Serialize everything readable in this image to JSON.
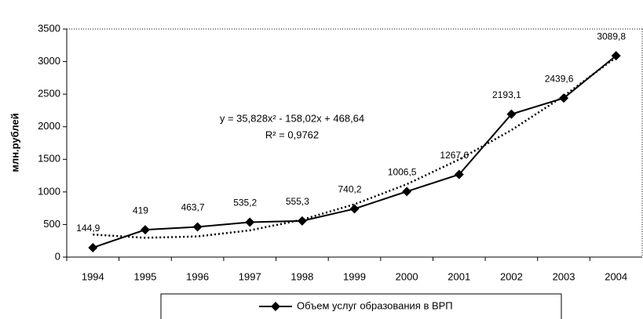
{
  "chart_data": {
    "type": "line",
    "y_label": "млн.рублей",
    "categories": [
      "1994",
      "1995",
      "1996",
      "1997",
      "1998",
      "1999",
      "2000",
      "2001",
      "2002",
      "2003",
      "2004"
    ],
    "series": [
      {
        "name": "Объем услуг образования в ВРП",
        "color": "#000000",
        "values": [
          144.9,
          419,
          463.7,
          535.2,
          555.3,
          740.2,
          1006.5,
          1267.6,
          2193.1,
          2439.6,
          3089.8
        ],
        "value_labels": [
          "144,9",
          "419",
          "463,7",
          "535,2",
          "555,3",
          "740,2",
          "1006,5",
          "1267,6",
          "2193,1",
          "2439,6",
          "3089,8"
        ]
      }
    ],
    "trendline": {
      "equation": "y = 35,828x² - 158,02x + 468,64",
      "r_squared": "R² = 0,9762",
      "values": [
        346,
        296,
        317,
        410,
        574,
        810,
        1118,
        1498,
        1949,
        2471,
        3066
      ],
      "color": "#000000"
    },
    "ylim": [
      0,
      3500
    ],
    "yticks": [
      0,
      500,
      1000,
      1500,
      2000,
      2500,
      3000,
      3500
    ],
    "grid": false
  }
}
